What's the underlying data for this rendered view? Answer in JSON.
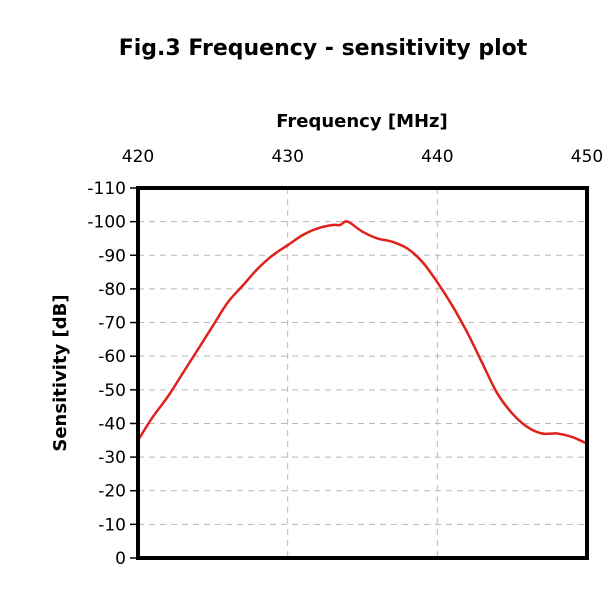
{
  "chart_data": {
    "type": "line",
    "title": "Fig.3 Frequency - sensitivity plot",
    "xlabel": "Frequency [MHz]",
    "ylabel": "Sensitivity [dB]",
    "x_axis_position": "top",
    "y_axis_inverted": true,
    "xlim": [
      420,
      450
    ],
    "ylim": [
      0,
      -110
    ],
    "x_ticks": [
      420,
      430,
      440,
      450
    ],
    "y_ticks": [
      -110,
      -100,
      -90,
      -80,
      -70,
      -60,
      -50,
      -40,
      -30,
      -20,
      -10,
      0
    ],
    "x_tick_labels": [
      "420",
      "430",
      "440",
      "450"
    ],
    "y_tick_labels": [
      "-110",
      "-100",
      "-90",
      "-80",
      "-70",
      "-60",
      "-50",
      "-40",
      "-30",
      "-20",
      "-10",
      "0"
    ],
    "grid": true,
    "grid_style": "dashed",
    "line_color": "#e0201b",
    "series": [
      {
        "x": [
          420,
          421,
          422,
          423,
          424,
          425,
          426,
          427,
          428,
          429,
          430,
          431,
          432,
          433,
          433.5,
          434,
          435,
          436,
          437,
          438,
          439,
          440,
          441,
          442,
          443,
          444,
          445,
          446,
          447,
          448,
          449,
          450
        ],
        "y": [
          -35,
          -42,
          -48,
          -55,
          -62,
          -69,
          -76,
          -81,
          -86,
          -90,
          -93,
          -96,
          -98,
          -99,
          -99,
          -100,
          -97,
          -95,
          -94,
          -92,
          -88,
          -82,
          -75,
          -67,
          -58,
          -49,
          -43,
          -39,
          -37,
          -37,
          -36,
          -34
        ]
      }
    ]
  }
}
